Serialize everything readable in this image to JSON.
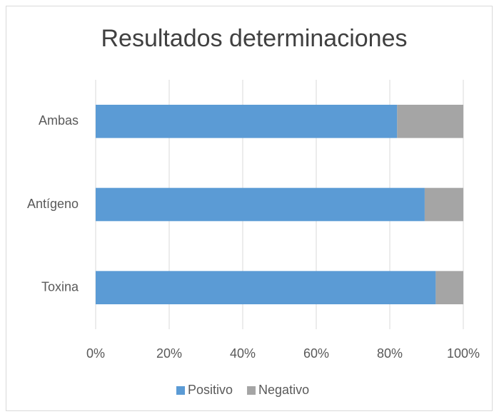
{
  "chart_data": {
    "type": "bar",
    "orientation": "horizontal",
    "stacked": true,
    "title": "Resultados determinaciones",
    "categories": [
      "Ambas",
      "Antígeno",
      "Toxina"
    ],
    "series": [
      {
        "name": "Positivo",
        "color": "#5b9bd5",
        "values": [
          82,
          89.5,
          92.5
        ]
      },
      {
        "name": "Negativo",
        "color": "#a5a5a5",
        "values": [
          18,
          10.5,
          7.5
        ]
      }
    ],
    "xlim": [
      0,
      100
    ],
    "xticks": [
      {
        "value": 0,
        "label": "0%"
      },
      {
        "value": 20,
        "label": "20%"
      },
      {
        "value": 40,
        "label": "40%"
      },
      {
        "value": 60,
        "label": "60%"
      },
      {
        "value": 80,
        "label": "80%"
      },
      {
        "value": 100,
        "label": "100%"
      }
    ],
    "grid": true,
    "legend": "bottom"
  }
}
